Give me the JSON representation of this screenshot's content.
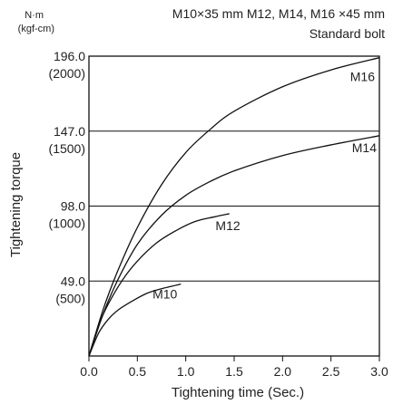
{
  "header": {
    "unit_nm": "N·m",
    "unit_kgf": "(kgf-cm)",
    "spec_line": "M10×35 mm M12, M14, M16 ×45 mm",
    "bolt_type": "Standard bolt"
  },
  "chart_data": {
    "type": "line",
    "xlabel": "Tightening time (Sec.)",
    "ylabel": "Tightening torque",
    "xlim": [
      0,
      3.0
    ],
    "ylim": [
      0,
      196.0
    ],
    "x_ticks": [
      "0.0",
      "0.5",
      "1.0",
      "1.5",
      "2.0",
      "2.5",
      "3.0"
    ],
    "y_ticks": [
      {
        "value": 49.0,
        "label": "49.0",
        "sub": "(500)"
      },
      {
        "value": 98.0,
        "label": "98.0",
        "sub": "(1000)"
      },
      {
        "value": 147.0,
        "label": "147.0",
        "sub": "(1500)"
      },
      {
        "value": 196.0,
        "label": "196.0",
        "sub": "(2000)"
      }
    ],
    "grid": "horizontal",
    "series": [
      {
        "name": "M10",
        "x": [
          0,
          0.1,
          0.2,
          0.3,
          0.45,
          0.6,
          0.75,
          0.95
        ],
        "y": [
          0,
          15,
          24,
          30,
          36,
          41,
          44,
          47
        ]
      },
      {
        "name": "M12",
        "x": [
          0,
          0.1,
          0.2,
          0.35,
          0.5,
          0.7,
          0.9,
          1.1,
          1.3,
          1.45
        ],
        "y": [
          0,
          20,
          34,
          50,
          62,
          74,
          82,
          88,
          91,
          93
        ]
      },
      {
        "name": "M14",
        "x": [
          0,
          0.15,
          0.3,
          0.5,
          0.75,
          1.0,
          1.25,
          1.5,
          2.0,
          2.5,
          3.0
        ],
        "y": [
          0,
          28,
          50,
          73,
          92,
          105,
          114,
          121,
          131,
          138,
          144
        ]
      },
      {
        "name": "M16",
        "x": [
          0,
          0.15,
          0.3,
          0.5,
          0.75,
          1.0,
          1.25,
          1.5,
          2.0,
          2.5,
          3.0
        ],
        "y": [
          0,
          31,
          56,
          84,
          112,
          133,
          148,
          160,
          176,
          187,
          195
        ]
      }
    ]
  }
}
